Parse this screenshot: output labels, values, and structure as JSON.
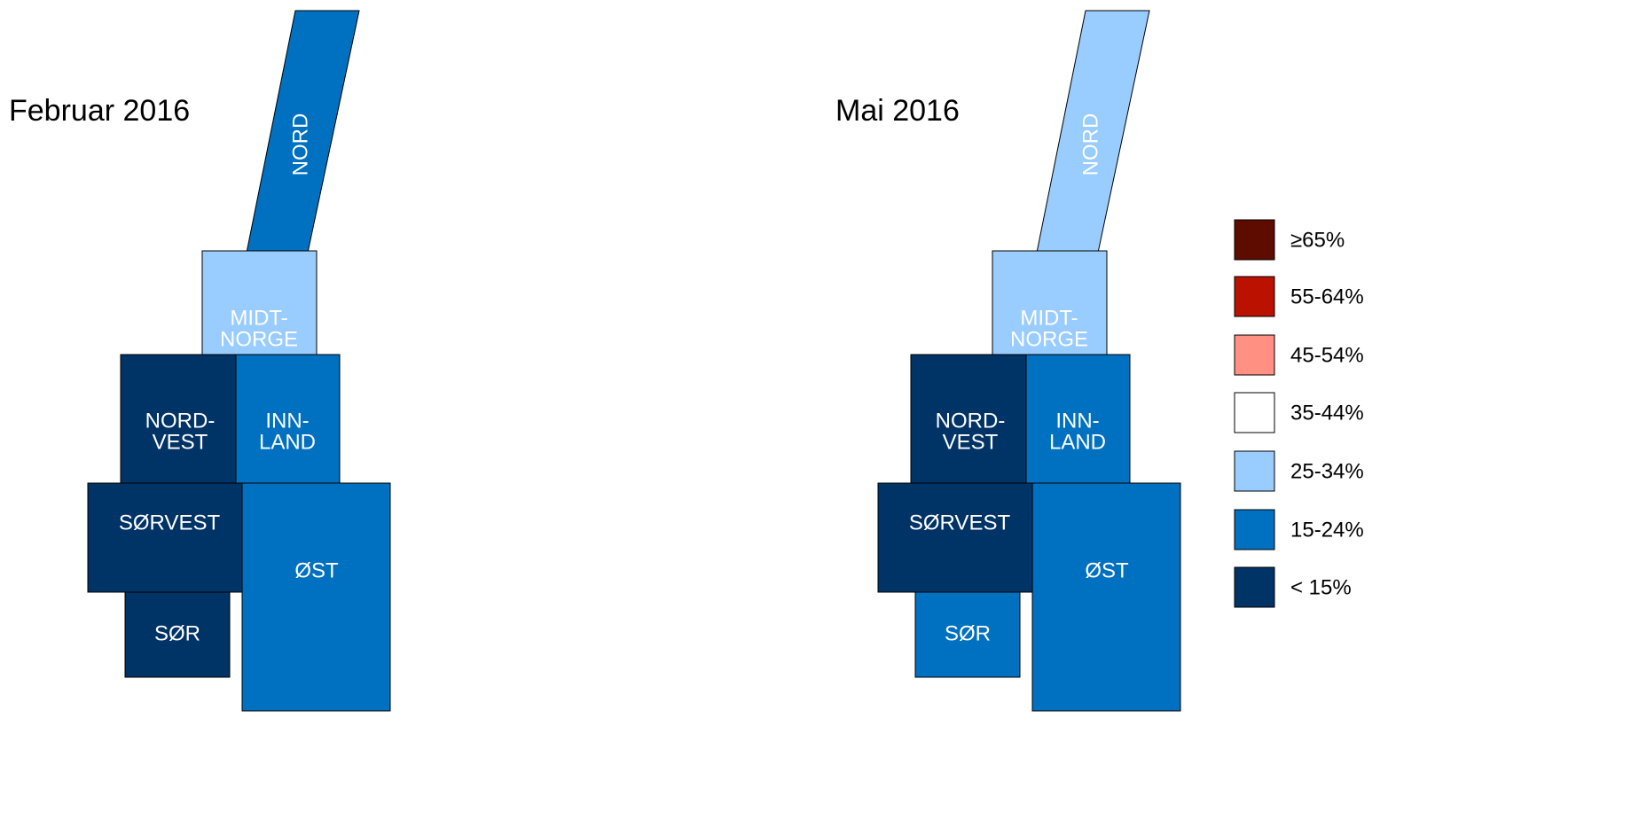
{
  "maps": [
    {
      "title": "Februar 2016",
      "regions": [
        {
          "label": [
            "NORD"
          ],
          "color": "#0070c0"
        },
        {
          "label": [
            "MIDT-",
            "NORGE"
          ],
          "color": "#99ccff"
        },
        {
          "label": [
            "NORD-",
            "VEST"
          ],
          "color": "#003366"
        },
        {
          "label": [
            "INN-",
            "LAND"
          ],
          "color": "#0070c0"
        },
        {
          "label": [
            "SØRVEST"
          ],
          "color": "#003366"
        },
        {
          "label": [
            "ØST"
          ],
          "color": "#0070c0"
        },
        {
          "label": [
            "SØR"
          ],
          "color": "#003366"
        }
      ]
    },
    {
      "title": "Mai 2016",
      "regions": [
        {
          "label": [
            "NORD"
          ],
          "color": "#99ccff"
        },
        {
          "label": [
            "MIDT-",
            "NORGE"
          ],
          "color": "#99ccff"
        },
        {
          "label": [
            "NORD-",
            "VEST"
          ],
          "color": "#003366"
        },
        {
          "label": [
            "INN-",
            "LAND"
          ],
          "color": "#0070c0"
        },
        {
          "label": [
            "SØRVEST"
          ],
          "color": "#003366"
        },
        {
          "label": [
            "ØST"
          ],
          "color": "#0070c0"
        },
        {
          "label": [
            "SØR"
          ],
          "color": "#0070c0"
        }
      ]
    }
  ],
  "legend": [
    {
      "label": "≥65%",
      "color": "#5e0b00"
    },
    {
      "label": "55-64%",
      "color": "#bb1100"
    },
    {
      "label": "45-54%",
      "color": "#ff9082"
    },
    {
      "label": "35-44%",
      "color": "#ffffff"
    },
    {
      "label": "25-34%",
      "color": "#99ccff"
    },
    {
      "label": "15-24%",
      "color": "#0070c0"
    },
    {
      "label": "< 15%",
      "color": "#003366"
    }
  ]
}
